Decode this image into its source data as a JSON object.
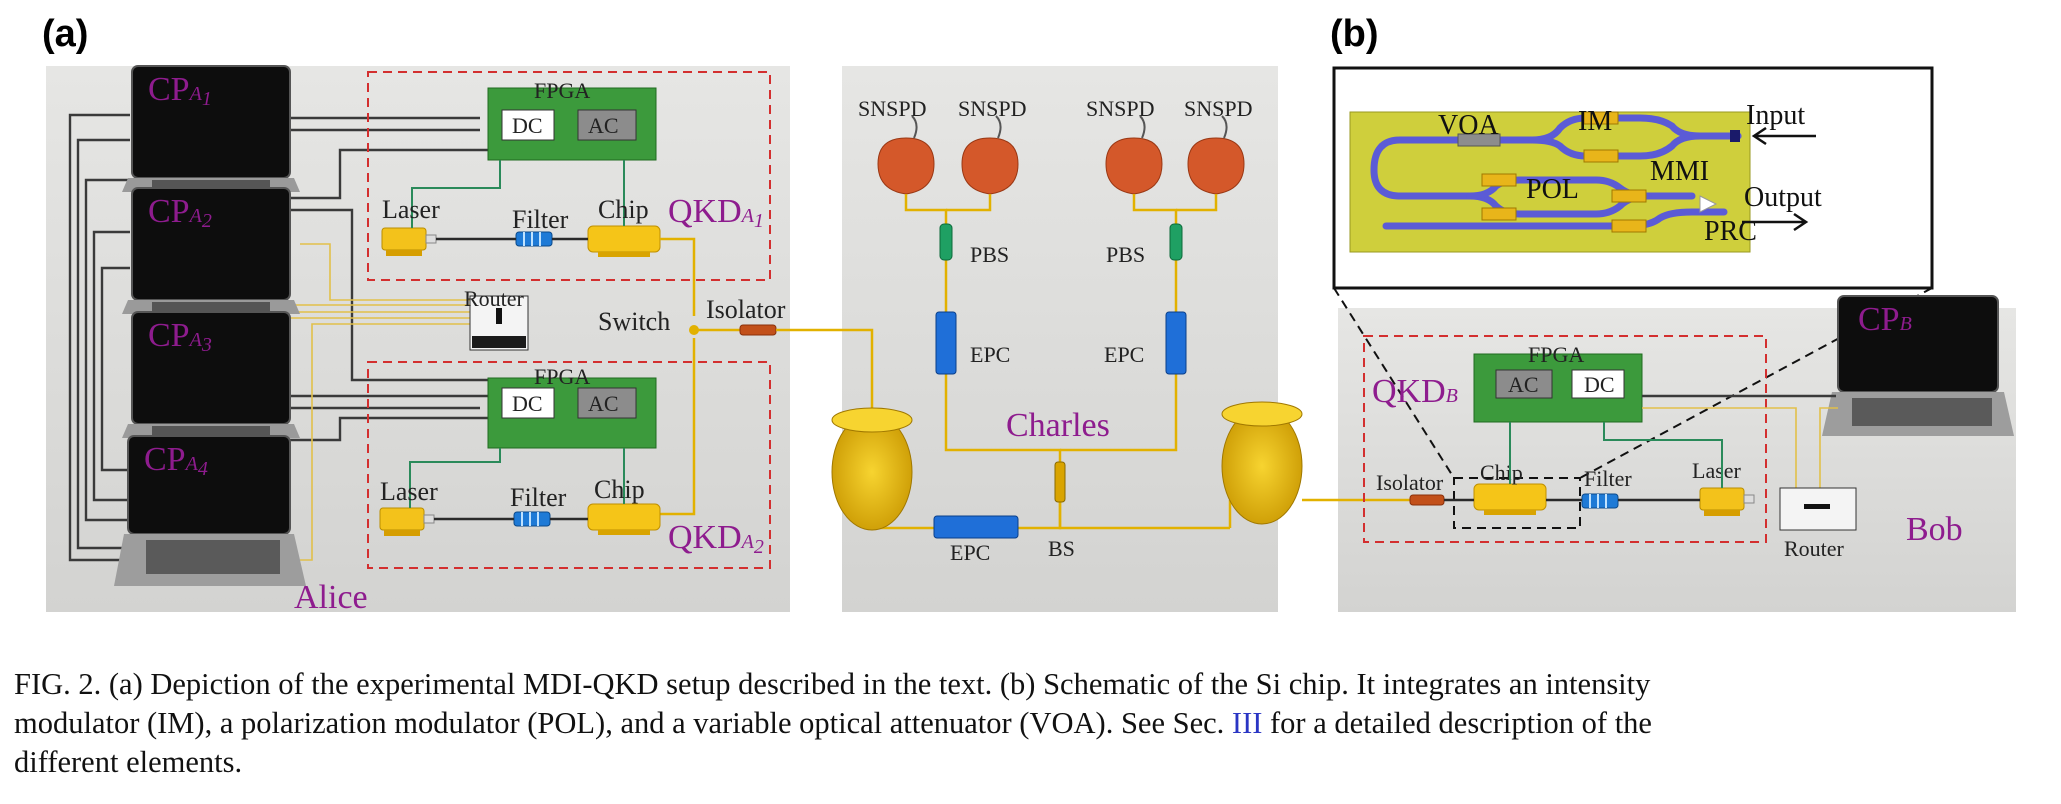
{
  "panels": {
    "a": "(a)",
    "b": "(b)"
  },
  "alice": {
    "name": "Alice",
    "computers": [
      {
        "main": "CP",
        "sub": "A",
        "idx": "1"
      },
      {
        "main": "CP",
        "sub": "A",
        "idx": "2"
      },
      {
        "main": "CP",
        "sub": "A",
        "idx": "3"
      },
      {
        "main": "CP",
        "sub": "A",
        "idx": "4"
      }
    ],
    "qkd_upper": {
      "main": "QKD",
      "sub": "A",
      "idx": "1"
    },
    "qkd_lower": {
      "main": "QKD",
      "sub": "A",
      "idx": "2"
    },
    "fpga": "FPGA",
    "dc": "DC",
    "ac": "AC",
    "laser": "Laser",
    "filter": "Filter",
    "chip": "Chip",
    "router": "Router",
    "switch": "Switch",
    "isolator": "Isolator"
  },
  "charles": {
    "name": "Charles",
    "snspd": [
      "SNSPD",
      "SNSPD",
      "SNSPD",
      "SNSPD"
    ],
    "pbs": [
      "PBS",
      "PBS"
    ],
    "epc": [
      "EPC",
      "EPC",
      "EPC"
    ],
    "bs": "BS"
  },
  "bob": {
    "name": "Bob",
    "computer": {
      "main": "CP",
      "sub": "B"
    },
    "qkd": {
      "main": "QKD",
      "sub": "B"
    },
    "fpga": "FPGA",
    "ac": "AC",
    "dc": "DC",
    "isolator": "Isolator",
    "chip": "Chip",
    "filter": "Filter",
    "laser": "Laser",
    "router": "Router"
  },
  "chip_schematic": {
    "voa": "VOA",
    "im": "IM",
    "input": "Input",
    "mmi": "MMI",
    "pol": "POL",
    "output": "Output",
    "prc": "PRC"
  },
  "caption": {
    "line1": "FIG.  2.     (a) Depiction of the experimental MDI-QKD setup described in the text. (b) Schematic of the Si chip. It integrates an intensity",
    "line2_pre": "modulator (IM), a polarization modulator (POL), and a variable optical attenuator (VOA). See Sec. ",
    "line2_ref": "III",
    "line2_post": " for a detailed description of the",
    "line3": "different elements."
  },
  "colors": {
    "table": "#dcdcda",
    "purple_text": "#8e1c8e",
    "red_dash": "#d32f2f",
    "fpga_green": "#3c9a3c",
    "fiber_yellow": "#e2b100",
    "chip_gold": "#f5c518",
    "epc_blue": "#1f6fd8",
    "snspd_orange": "#d4582a",
    "waveguide_blue": "#5b5bd6",
    "chip_substrate": "#cfcf3c"
  }
}
